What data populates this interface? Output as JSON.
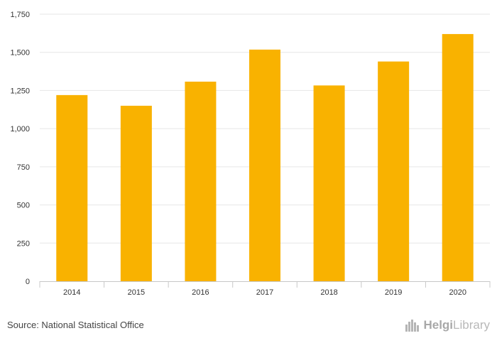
{
  "chart_data": {
    "type": "bar",
    "categories": [
      "2014",
      "2015",
      "2016",
      "2017",
      "2018",
      "2019",
      "2020"
    ],
    "values": [
      1220,
      1150,
      1308,
      1518,
      1283,
      1440,
      1620
    ],
    "title": "",
    "xlabel": "",
    "ylabel": "",
    "ylim": [
      0,
      1750
    ],
    "yticks": [
      0,
      250,
      500,
      750,
      1000,
      1250,
      1500,
      1750
    ],
    "ytick_labels": [
      "0",
      "250",
      "500",
      "750",
      "1,000",
      "1,250",
      "1,500",
      "1,750"
    ],
    "grid": true,
    "bar_color": "#f9b200"
  },
  "footer": {
    "source": "Source: National Statistical Office",
    "logo_text_1": "Helgi",
    "logo_text_2": "Library"
  }
}
